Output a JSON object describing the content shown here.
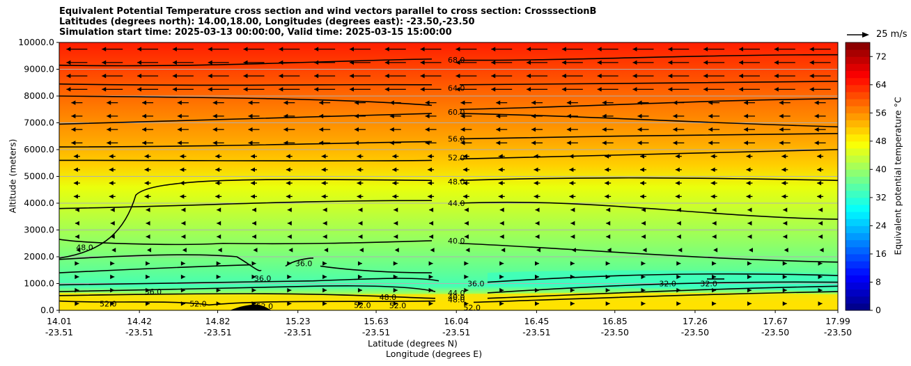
{
  "chart_data": {
    "type": "heatmap",
    "title_lines": [
      "Equivalent Potential Temperature cross section and wind vectors parallel to cross section: CrosssectionB",
      "Latitudes (degrees north): 14.00,18.00, Longitudes (degrees east): -23.50,-23.50",
      "Simulation start time: 2025-03-13 00:00:00, Valid time: 2025-03-15 15:00:00"
    ],
    "xlabel_lat": "Latitude (degrees N)",
    "xlabel_lon": "Longitude (degrees E)",
    "ylabel": "Altitude (meters)",
    "colorbar_label": "Equivalent potential temperature $^\\circ$C",
    "colorbar_label_text": "Equivalent potential temperature °C",
    "reference_vector_label": "25 m/s",
    "ylim": [
      0,
      10000
    ],
    "xlim": [
      14.01,
      17.99
    ],
    "y_ticks": [
      "0.0",
      "1000.0",
      "2000.0",
      "3000.0",
      "4000.0",
      "5000.0",
      "6000.0",
      "7000.0",
      "8000.0",
      "9000.0",
      "10000.0"
    ],
    "x_ticks_lat": [
      "14.01",
      "14.42",
      "14.82",
      "15.23",
      "15.63",
      "16.04",
      "16.45",
      "16.85",
      "17.26",
      "17.67",
      "17.99"
    ],
    "x_ticks_lon": [
      "-23.51",
      "-23.51",
      "-23.51",
      "-23.51",
      "-23.51",
      "-23.51",
      "-23.51",
      "-23.50",
      "-23.50",
      "-23.50",
      "-23.50"
    ],
    "colorbar_ticks": [
      "0",
      "8",
      "16",
      "24",
      "32",
      "40",
      "48",
      "56",
      "64",
      "72"
    ],
    "colorbar_range": [
      0,
      76
    ],
    "contour_labels": [
      {
        "text": "68.0",
        "lat": 16.04,
        "alt": 9350
      },
      {
        "text": "64.0",
        "lat": 16.04,
        "alt": 8300
      },
      {
        "text": "60.0",
        "lat": 16.04,
        "alt": 7400
      },
      {
        "text": "56.0",
        "lat": 16.04,
        "alt": 6400
      },
      {
        "text": "52.0",
        "lat": 16.04,
        "alt": 5700
      },
      {
        "text": "48.0",
        "lat": 16.04,
        "alt": 4800
      },
      {
        "text": "44.0",
        "lat": 16.04,
        "alt": 4000
      },
      {
        "text": "40.0",
        "lat": 16.04,
        "alt": 2600
      },
      {
        "text": "48.0",
        "lat": 14.14,
        "alt": 2350
      },
      {
        "text": "36.0",
        "lat": 15.26,
        "alt": 1750
      },
      {
        "text": "36.0",
        "lat": 15.05,
        "alt": 1200
      },
      {
        "text": "36.0",
        "lat": 14.49,
        "alt": 700
      },
      {
        "text": "32.0",
        "lat": 17.12,
        "alt": 1000
      },
      {
        "text": "32.0",
        "lat": 17.33,
        "alt": 1000
      },
      {
        "text": "52.0",
        "lat": 14.26,
        "alt": 250
      },
      {
        "text": "52.0",
        "lat": 14.72,
        "alt": 250
      },
      {
        "text": "52.0",
        "lat": 15.06,
        "alt": 150
      },
      {
        "text": "52.0",
        "lat": 15.56,
        "alt": 200
      },
      {
        "text": "52.0",
        "lat": 15.74,
        "alt": 180
      },
      {
        "text": "48.0",
        "lat": 15.69,
        "alt": 500
      },
      {
        "text": "36.0",
        "lat": 16.14,
        "alt": 1000
      },
      {
        "text": "52.0",
        "lat": 16.12,
        "alt": 100
      },
      {
        "text": "44.0",
        "lat": 16.04,
        "alt": 650
      },
      {
        "text": "40.0",
        "lat": 16.04,
        "alt": 500
      },
      {
        "text": "48.0",
        "lat": 16.04,
        "alt": 400
      }
    ],
    "grid": "horizontal",
    "colormap": "jet"
  }
}
